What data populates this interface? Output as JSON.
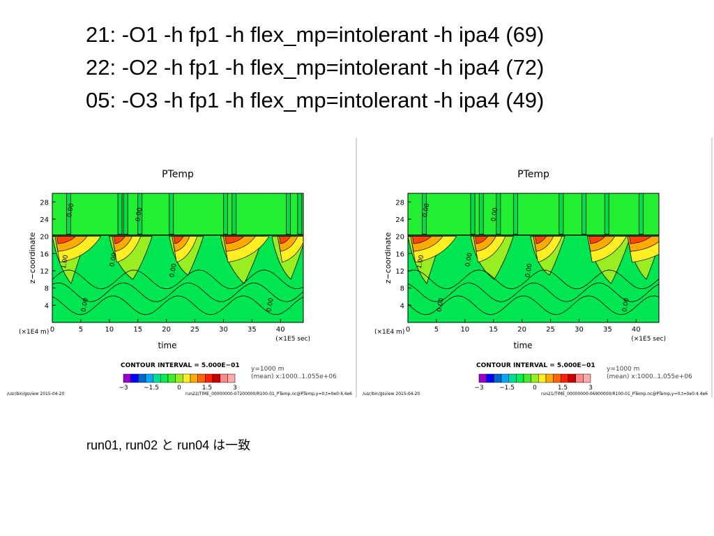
{
  "slide": {
    "title_lines": [
      "21: -O1 -h fp1 -h flex_mp=intolerant -h ipa4 (69)",
      "22: -O2 -h fp1 -h flex_mp=intolerant -h ipa4 (72)",
      "05: -O3 -h fp1 -h flex_mp=intolerant -h ipa4 (49)"
    ],
    "footnote": "run01, run02 と run04 は一致"
  },
  "colors": {
    "levels": [
      "#9900cc",
      "#0000ff",
      "#0066cc",
      "#00aaff",
      "#00dd99",
      "#00ee55",
      "#44ee22",
      "#99ee22",
      "#ffee22",
      "#ffaa00",
      "#ff6600",
      "#ff2200",
      "#cc0000",
      "#ff8888",
      "#ffaaaa"
    ],
    "background_field": "#00e650",
    "upper_band": "#22ee33",
    "warm_core": "#ff4400"
  },
  "chart_data": [
    {
      "type": "heatmap",
      "title": "PTemp",
      "xlabel": "time",
      "ylabel": "z−coordinate",
      "x_unit": "(×1E5 sec)",
      "y_unit": "(×1E4 m)",
      "x_ticks": [
        "0",
        "5",
        "10",
        "15",
        "20",
        "25",
        "30",
        "35",
        "40"
      ],
      "y_ticks": [
        "4",
        "8",
        "12",
        "16",
        "20",
        "24",
        "28"
      ],
      "xlim": [
        0,
        44
      ],
      "ylim": [
        0,
        30
      ],
      "contour_labels": [
        "0.00",
        "1.00",
        "0.00",
        "0.00",
        "0.00",
        "0.00",
        "0.00"
      ],
      "contour_interval": "CONTOUR INTERVAL = 5.000E−01",
      "note_lines": [
        "y=1000 m",
        "(mean) x:1000..1.055e+06"
      ],
      "colorbar_ticks": [
        "−3",
        "−1.5",
        "0",
        "1.5",
        "3"
      ],
      "footer_left": "/usr/bin/gsview   2015-04-20",
      "footer_right": "run22/TIME_00000000-07200000/R100-01_PTemp.nc@PTemp,y=0,t=0e0:4.4e6"
    },
    {
      "type": "heatmap",
      "title": "PTemp",
      "xlabel": "time",
      "ylabel": "z−coordinate",
      "x_unit": "(×1E5 sec)",
      "y_unit": "(×1E4 m)",
      "x_ticks": [
        "0",
        "5",
        "10",
        "15",
        "20",
        "25",
        "30",
        "35",
        "40"
      ],
      "y_ticks": [
        "4",
        "8",
        "12",
        "16",
        "20",
        "24",
        "28"
      ],
      "xlim": [
        0,
        44
      ],
      "ylim": [
        0,
        30
      ],
      "contour_labels": [
        "0.00",
        "1.00",
        "0.00",
        "0.00",
        "0.00",
        "0.00",
        "0.00"
      ],
      "contour_interval": "CONTOUR INTERVAL = 5.000E−01",
      "note_lines": [
        "y=1000 m",
        "(mean) x:1000..1.055e+06"
      ],
      "colorbar_ticks": [
        "−3",
        "−1.5",
        "0",
        "1.5",
        "3"
      ],
      "footer_left": "/usr/bin/gsview   2015-04-20",
      "footer_right": "run21/TIME_00000000-06900000/R100-01_PTemp.nc@PTemp,y=0,t=0e0:4.4e6"
    }
  ]
}
